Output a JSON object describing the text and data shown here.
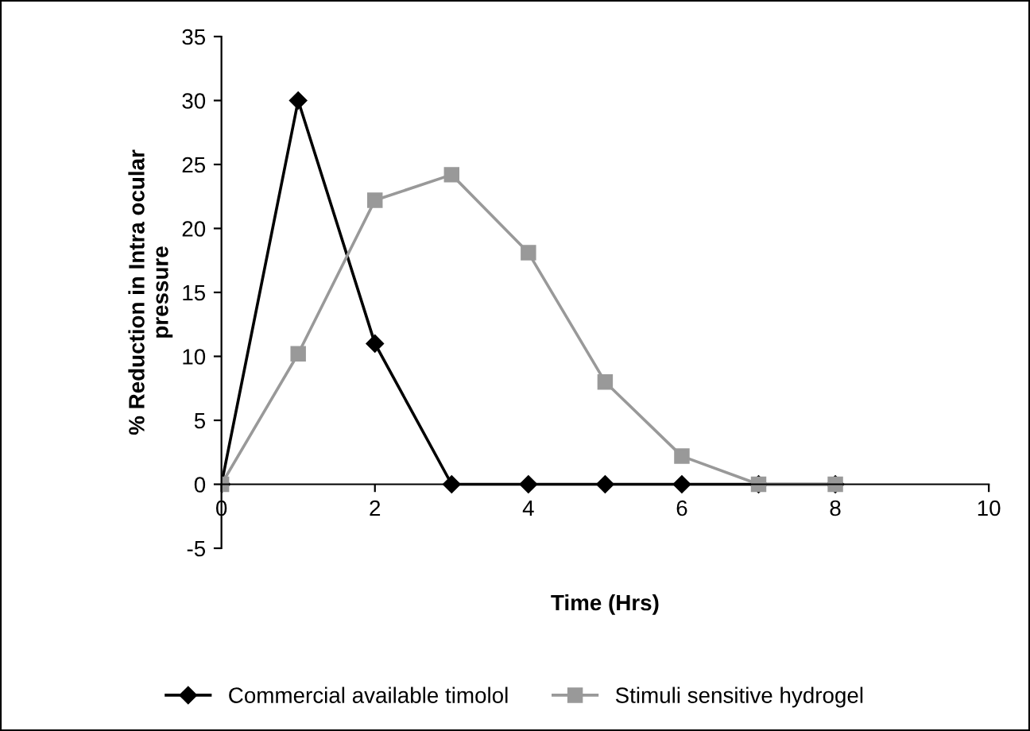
{
  "chart_data": {
    "type": "line",
    "xlabel": "Time (Hrs)",
    "ylabel": "% Reduction in Intra ocular\npressure",
    "xlim": [
      0,
      10
    ],
    "xticks": [
      0,
      2,
      4,
      6,
      8,
      10
    ],
    "ylim": [
      -5,
      35
    ],
    "yticks": [
      -5,
      0,
      5,
      10,
      15,
      20,
      25,
      30,
      35
    ],
    "grid": false,
    "legend": "bottom",
    "line_style": "solid",
    "series": [
      {
        "name": "Commercial available timolol",
        "color": "#000000",
        "marker": "diamond",
        "x": [
          0,
          1,
          2,
          3,
          4,
          5,
          6,
          7,
          8
        ],
        "values": [
          0,
          30,
          11,
          0,
          0,
          0,
          0,
          0,
          0
        ]
      },
      {
        "name": "Stimuli sensitive hydrogel",
        "color": "#999999",
        "marker": "square",
        "x": [
          0,
          1,
          2,
          3,
          4,
          5,
          6,
          7,
          8
        ],
        "values": [
          0,
          10.2,
          22.2,
          24.2,
          18.1,
          8,
          2.2,
          0,
          0
        ]
      }
    ]
  }
}
